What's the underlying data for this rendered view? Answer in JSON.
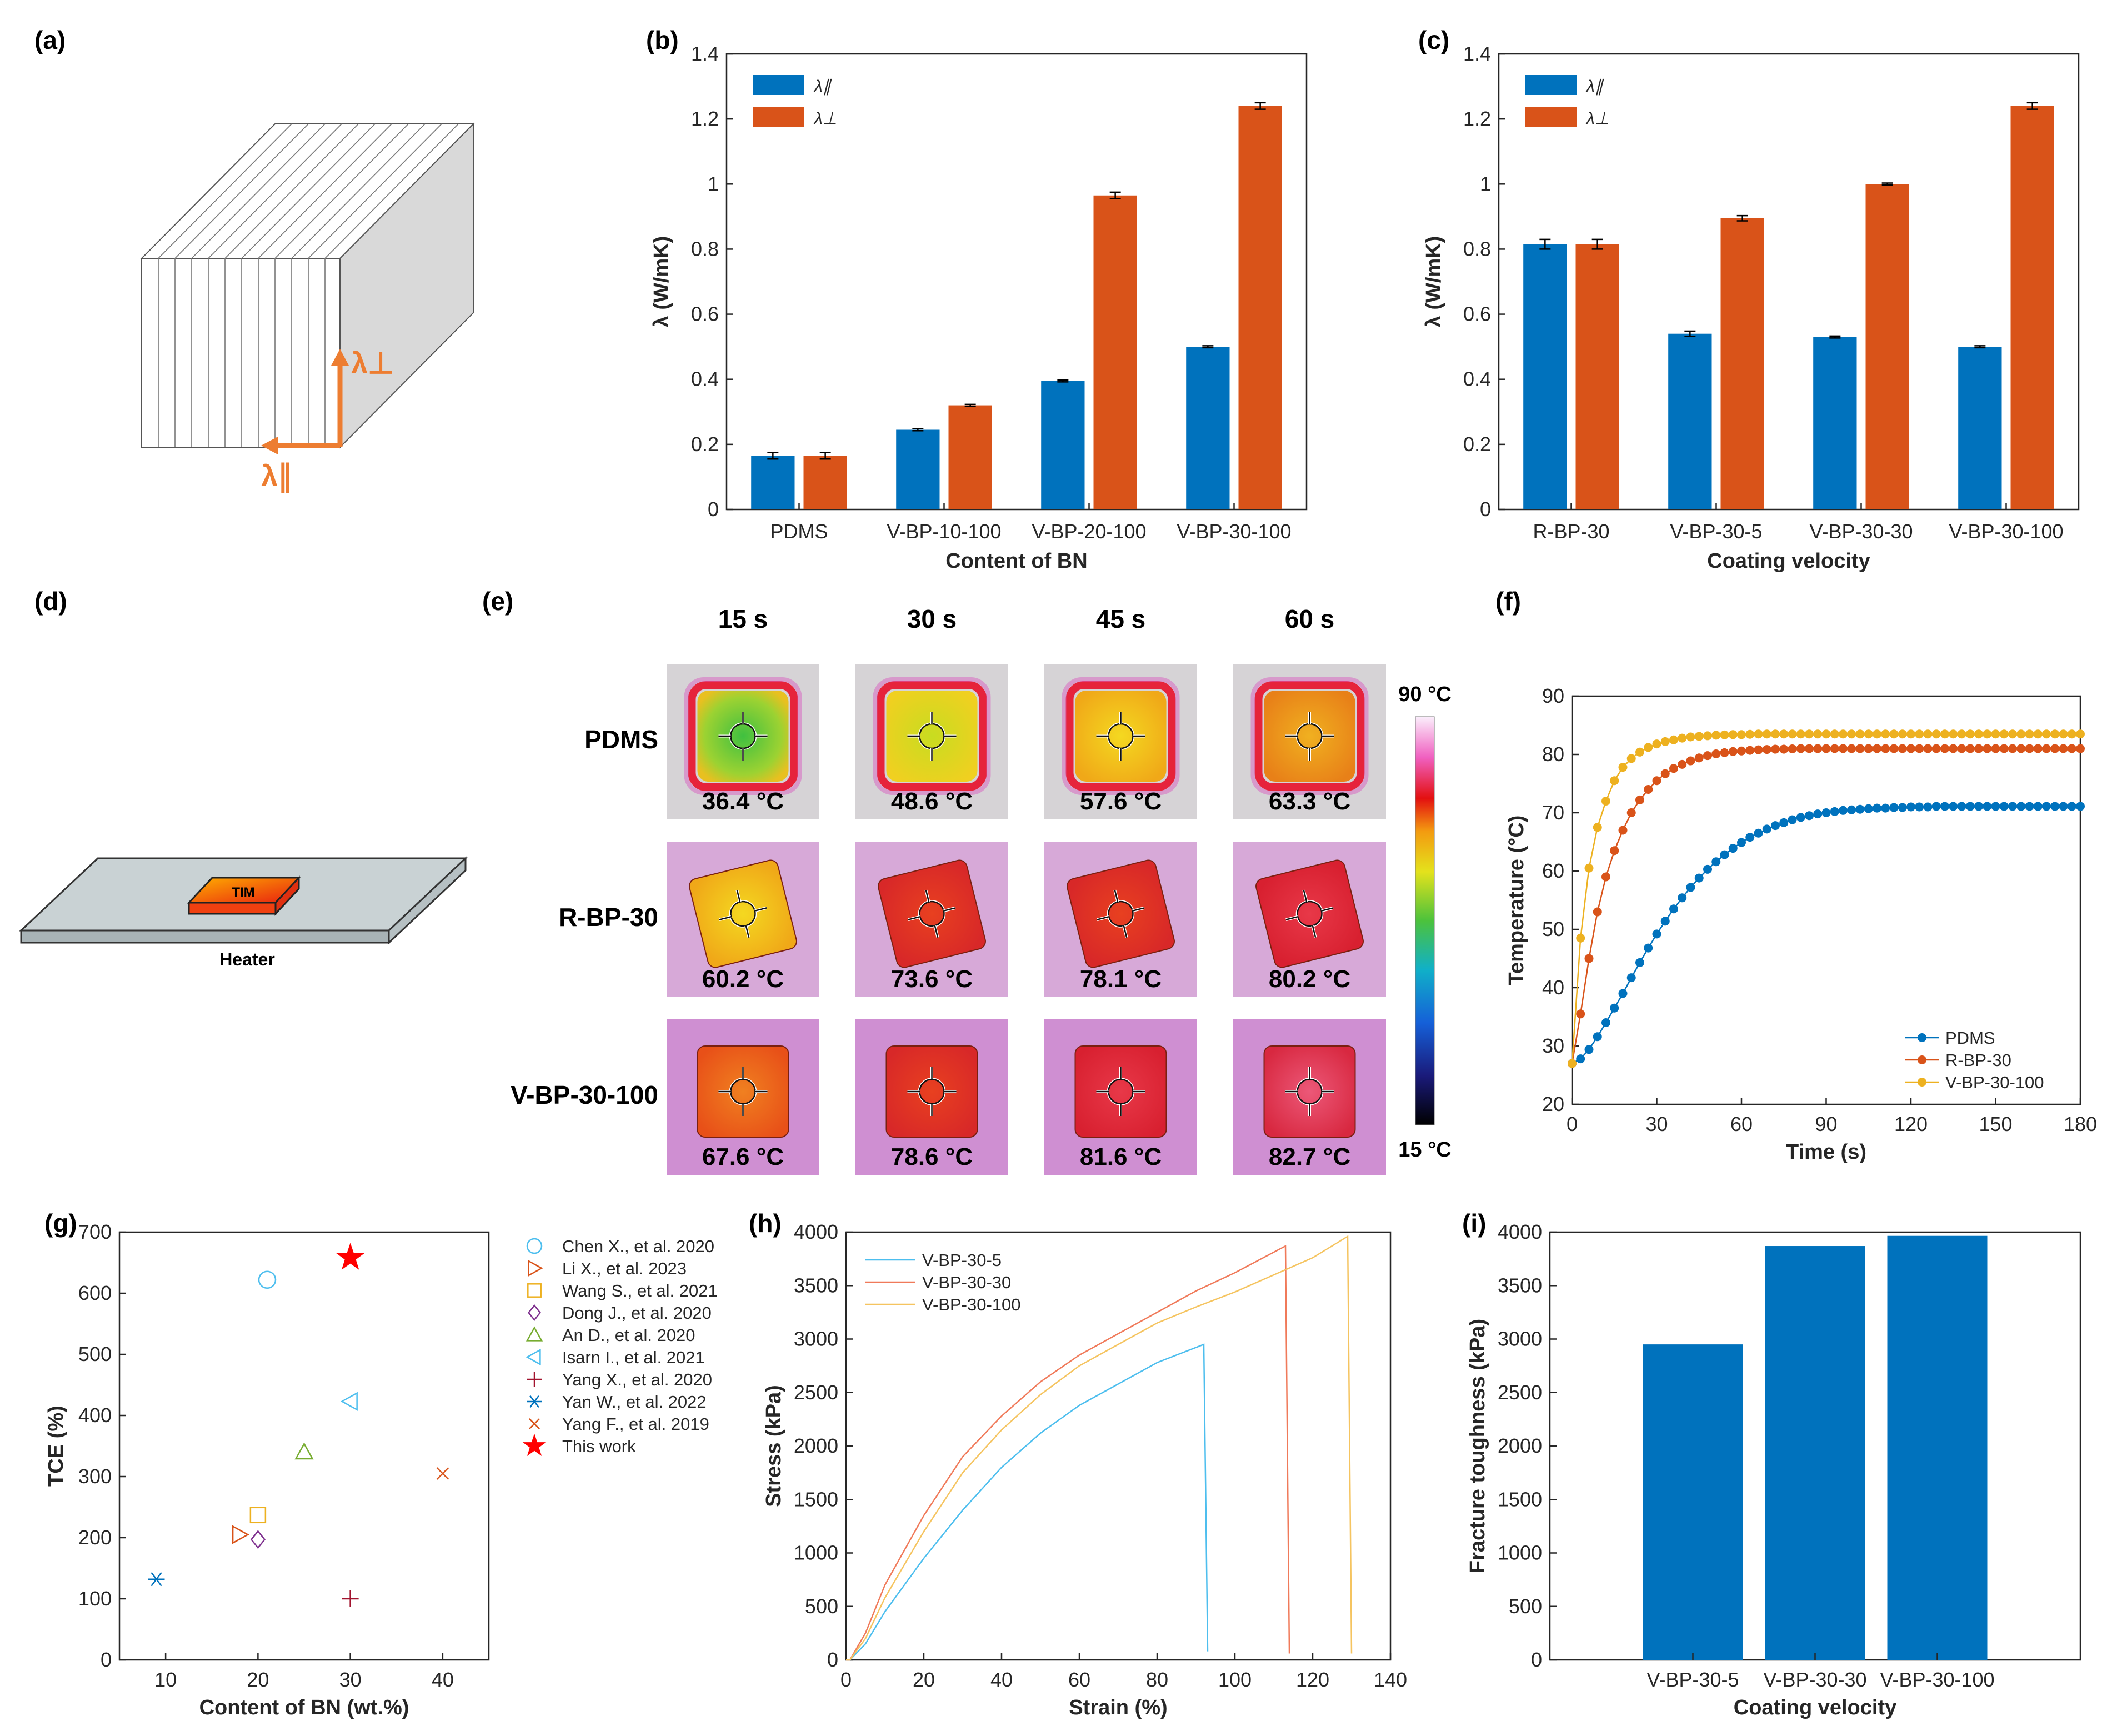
{
  "panel_labels": {
    "a": "(a)",
    "b": "(b)",
    "c": "(c)",
    "d": "(d)",
    "e": "(e)",
    "f": "(f)",
    "g": "(g)",
    "h": "(h)",
    "i": "(i)"
  },
  "schematic_a": {
    "lambda_perp": "λ⊥",
    "lambda_par": "λ∥"
  },
  "schematic_d": {
    "tim_label": "TIM",
    "heater_label": "Heater"
  },
  "colors": {
    "blue": "#0072BD",
    "orange": "#D95319",
    "yellow": "#EDB120",
    "purple": "#7E2F8E",
    "green": "#77AC30",
    "cyan": "#4DBEEE",
    "red": "#A2142F",
    "star": "#FF0000"
  },
  "thermal_e": {
    "columns": [
      "15 s",
      "30 s",
      "45 s",
      "60 s"
    ],
    "rows": [
      {
        "label": "PDMS",
        "temps": [
          "36.4 °C",
          "48.6 °C",
          "57.6 °C",
          "63.3 °C"
        ]
      },
      {
        "label": "R-BP-30",
        "temps": [
          "60.2 °C",
          "73.6 °C",
          "78.1 °C",
          "80.2 °C"
        ]
      },
      {
        "label": "V-BP-30-100",
        "temps": [
          "67.6 °C",
          "78.6 °C",
          "81.6 °C",
          "82.7 °C"
        ]
      }
    ],
    "colorbar": {
      "max": "90 °C",
      "min": "15 °C"
    }
  },
  "chart_data": [
    {
      "id": "b",
      "type": "bar",
      "categories": [
        "PDMS",
        "V-BP-10-100",
        "V-BP-20-100",
        "V-BP-30-100"
      ],
      "series": [
        {
          "name": "λ∥",
          "values": [
            0.165,
            0.245,
            0.395,
            0.5
          ],
          "errors": [
            0.01,
            0.003,
            0.003,
            0.003
          ]
        },
        {
          "name": "λ⊥",
          "values": [
            0.165,
            0.32,
            0.965,
            1.24
          ],
          "errors": [
            0.01,
            0.003,
            0.01,
            0.01
          ]
        }
      ],
      "xlabel": "Content of BN",
      "ylabel": "λ (W/mK)",
      "ylim": [
        0,
        1.4
      ],
      "yticks": [
        0,
        0.2,
        0.4,
        0.6,
        0.8,
        1,
        1.2,
        1.4
      ],
      "ytick_labels": [
        "0",
        "0.2",
        "0.4",
        "0.6",
        "0.8",
        "1",
        "1.2",
        "1.4"
      ],
      "legend": "top-left"
    },
    {
      "id": "c",
      "type": "bar",
      "categories": [
        "R-BP-30",
        "V-BP-30-5",
        "V-BP-30-30",
        "V-BP-30-100"
      ],
      "series": [
        {
          "name": "λ∥",
          "values": [
            0.815,
            0.54,
            0.53,
            0.5
          ],
          "errors": [
            0.015,
            0.008,
            0.003,
            0.003
          ]
        },
        {
          "name": "λ⊥",
          "values": [
            0.815,
            0.895,
            1.0,
            1.24
          ],
          "errors": [
            0.015,
            0.008,
            0.003,
            0.01
          ]
        }
      ],
      "xlabel": "Coating velocity",
      "ylabel": "λ (W/mK)",
      "ylim": [
        0,
        1.4
      ],
      "yticks": [
        0,
        0.2,
        0.4,
        0.6,
        0.8,
        1,
        1.2,
        1.4
      ],
      "ytick_labels": [
        "0",
        "0.2",
        "0.4",
        "0.6",
        "0.8",
        "1",
        "1.2",
        "1.4"
      ],
      "legend": "top-left"
    },
    {
      "id": "f",
      "type": "line",
      "xlabel": "Time (s)",
      "ylabel": "Temperature (°C)",
      "xlim": [
        0,
        180
      ],
      "ylim": [
        20,
        90
      ],
      "xticks": [
        0,
        30,
        60,
        90,
        120,
        150,
        180
      ],
      "yticks": [
        20,
        30,
        40,
        50,
        60,
        70,
        80,
        90
      ],
      "x": [
        0,
        3,
        6,
        9,
        12,
        15,
        18,
        21,
        24,
        27,
        30,
        33,
        36,
        39,
        42,
        45,
        48,
        51,
        54,
        57,
        60,
        63,
        66,
        69,
        72,
        75,
        78,
        81,
        84,
        87,
        90,
        93,
        96,
        99,
        102,
        105,
        108,
        111,
        114,
        117,
        120,
        123,
        126,
        129,
        132,
        135,
        138,
        141,
        144,
        147,
        150,
        153,
        156,
        159,
        162,
        165,
        168,
        171,
        174,
        177,
        180
      ],
      "series": [
        {
          "name": "PDMS",
          "values": [
            27,
            27.8,
            29.4,
            31.6,
            34,
            36.5,
            39,
            41.7,
            44.3,
            46.8,
            49.2,
            51.4,
            53.5,
            55.4,
            57.2,
            58.8,
            60.3,
            61.6,
            62.8,
            63.9,
            64.9,
            65.8,
            66.5,
            67.2,
            67.8,
            68.3,
            68.8,
            69.2,
            69.5,
            69.8,
            70.0,
            70.2,
            70.4,
            70.5,
            70.6,
            70.7,
            70.8,
            70.8,
            70.9,
            70.9,
            71.0,
            71.0,
            71.0,
            71.1,
            71.1,
            71.1,
            71.1,
            71.1,
            71.1,
            71.1,
            71.1,
            71.1,
            71.1,
            71.1,
            71.1,
            71.1,
            71.1,
            71.1,
            71.1,
            71.1,
            71.1
          ]
        },
        {
          "name": "R-BP-30",
          "values": [
            27,
            35.5,
            45,
            53,
            59,
            63.5,
            67,
            70,
            72.2,
            74,
            75.5,
            76.7,
            77.6,
            78.3,
            78.9,
            79.4,
            79.8,
            80.1,
            80.3,
            80.5,
            80.6,
            80.7,
            80.8,
            80.85,
            80.9,
            80.9,
            80.95,
            81,
            81,
            81,
            81,
            81,
            81,
            81,
            81,
            81,
            81,
            81,
            81,
            81,
            81,
            81,
            81,
            81,
            81,
            81,
            81,
            81,
            81,
            81,
            81,
            81,
            81,
            81,
            81,
            81,
            81,
            81,
            81,
            81,
            81
          ]
        },
        {
          "name": "V-BP-30-100",
          "values": [
            27,
            48.5,
            60.5,
            67.5,
            72,
            75.5,
            77.8,
            79.3,
            80.4,
            81.2,
            81.8,
            82.2,
            82.5,
            82.8,
            83.0,
            83.1,
            83.2,
            83.3,
            83.35,
            83.4,
            83.4,
            83.45,
            83.5,
            83.5,
            83.5,
            83.5,
            83.5,
            83.5,
            83.5,
            83.5,
            83.5,
            83.5,
            83.5,
            83.5,
            83.5,
            83.5,
            83.5,
            83.5,
            83.5,
            83.5,
            83.5,
            83.5,
            83.5,
            83.5,
            83.5,
            83.5,
            83.5,
            83.5,
            83.5,
            83.5,
            83.5,
            83.5,
            83.5,
            83.5,
            83.5,
            83.5,
            83.5,
            83.5,
            83.5,
            83.5,
            83.5
          ]
        }
      ],
      "legend": "bottom-right"
    },
    {
      "id": "g",
      "type": "scatter",
      "xlabel": "Content of BN (wt.%)",
      "ylabel": "TCE (%)",
      "xlim": [
        5,
        45
      ],
      "ylim": [
        0,
        700
      ],
      "xticks": [
        10,
        20,
        30,
        40
      ],
      "yticks": [
        0,
        100,
        200,
        300,
        400,
        500,
        600,
        700
      ],
      "points": [
        {
          "name": "Chen X., et al. 2020",
          "x": 21,
          "y": 622,
          "marker": "circle",
          "color": "#4DBEEE"
        },
        {
          "name": "Li X., et al. 2023",
          "x": 18,
          "y": 205,
          "marker": "triangle-right",
          "color": "#D95319"
        },
        {
          "name": "Wang S., et al. 2021",
          "x": 20,
          "y": 237,
          "marker": "square",
          "color": "#EDB120"
        },
        {
          "name": "Dong J., et al. 2020",
          "x": 20,
          "y": 197,
          "marker": "diamond",
          "color": "#7E2F8E"
        },
        {
          "name": "An D., et al. 2020",
          "x": 25,
          "y": 340,
          "marker": "triangle-up",
          "color": "#77AC30"
        },
        {
          "name": "Isarn I., et al. 2021",
          "x": 30,
          "y": 423,
          "marker": "triangle-left",
          "color": "#4DBEEE"
        },
        {
          "name": "Yang X., et al. 2020",
          "x": 30,
          "y": 100,
          "marker": "plus",
          "color": "#A2142F"
        },
        {
          "name": "Yan W., et al. 2022",
          "x": 9,
          "y": 132,
          "marker": "asterisk",
          "color": "#0072BD"
        },
        {
          "name": "Yang F., et al. 2019",
          "x": 40,
          "y": 305,
          "marker": "x",
          "color": "#D95319"
        },
        {
          "name": "This work",
          "x": 30,
          "y": 658,
          "marker": "star",
          "color": "#FF0000"
        }
      ],
      "legend": "outside-right"
    },
    {
      "id": "h",
      "type": "line",
      "xlabel": "Strain (%)",
      "ylabel": "Stress (kPa)",
      "xlim": [
        0,
        140
      ],
      "ylim": [
        0,
        4000
      ],
      "xticks": [
        0,
        20,
        40,
        60,
        80,
        100,
        120,
        140
      ],
      "yticks": [
        0,
        500,
        1000,
        1500,
        2000,
        2500,
        3000,
        3500,
        4000
      ],
      "series": [
        {
          "name": "V-BP-30-5",
          "x": [
            0,
            1,
            5,
            10,
            20,
            30,
            40,
            50,
            60,
            70,
            80,
            92,
            93
          ],
          "y": [
            0,
            0,
            150,
            450,
            950,
            1400,
            1800,
            2120,
            2380,
            2580,
            2780,
            2950,
            80
          ]
        },
        {
          "name": "V-BP-30-30",
          "x": [
            0,
            1,
            5,
            10,
            20,
            30,
            40,
            50,
            60,
            70,
            80,
            90,
            100,
            113,
            114
          ],
          "y": [
            0,
            0,
            250,
            700,
            1350,
            1900,
            2280,
            2600,
            2850,
            3050,
            3250,
            3450,
            3620,
            3870,
            60
          ]
        },
        {
          "name": "V-BP-30-100",
          "x": [
            0,
            1,
            5,
            10,
            20,
            30,
            40,
            50,
            60,
            70,
            80,
            90,
            100,
            110,
            120,
            129,
            130
          ],
          "y": [
            0,
            0,
            200,
            580,
            1200,
            1750,
            2150,
            2480,
            2750,
            2950,
            3150,
            3300,
            3440,
            3600,
            3760,
            3960,
            60
          ]
        }
      ],
      "legend": "top-left"
    },
    {
      "id": "i",
      "type": "bar",
      "xlabel": "Coating velocity",
      "ylabel": "Fracture toughness (kPa)",
      "categories": [
        "V-BP-30-5",
        "V-BP-30-30",
        "V-BP-30-100"
      ],
      "values": [
        2950,
        3870,
        3965
      ],
      "ylim": [
        0,
        4000
      ],
      "yticks": [
        0,
        500,
        1000,
        1500,
        2000,
        2500,
        3000,
        3500,
        4000
      ]
    }
  ]
}
